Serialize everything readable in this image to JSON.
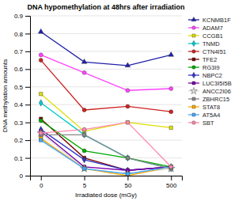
{
  "chart_data": {
    "type": "line",
    "title": "DNA hypomethylation at 48hrs after irradiation",
    "x_label": "Irradiated dose (mGy)",
    "y_label": "DNA methylation amounts",
    "categories": [
      "0",
      "5",
      "50",
      "500"
    ],
    "ylim": [
      0,
      0.9
    ],
    "yticks": [
      0,
      0.1,
      0.2,
      0.3,
      0.4,
      0.5,
      0.6,
      0.7,
      0.8,
      0.9
    ],
    "grid": true,
    "legend": "right",
    "series": [
      {
        "name": "KCNMB1F",
        "color": "#2020AA",
        "marker": "triangle",
        "values": [
          0.81,
          0.64,
          0.62,
          0.68
        ]
      },
      {
        "name": "ADAM7",
        "color": "#FF44FF",
        "marker": "circle",
        "values": [
          0.68,
          0.58,
          0.48,
          0.49
        ]
      },
      {
        "name": "CCGB1",
        "color": "#DDDD00",
        "marker": "square",
        "values": [
          0.46,
          0.25,
          0.3,
          0.27
        ]
      },
      {
        "name": "TNMD",
        "color": "#00CCCC",
        "marker": "diamond",
        "values": [
          0.41,
          0.23,
          0.1,
          0.04
        ]
      },
      {
        "name": "CTN4I51",
        "color": "#CC2222",
        "marker": "circle",
        "values": [
          0.65,
          0.37,
          0.39,
          0.36
        ]
      },
      {
        "name": "TFE2",
        "color": "#770000",
        "marker": "square",
        "values": [
          0.32,
          0.1,
          0.03,
          0.05
        ]
      },
      {
        "name": "RG3I9",
        "color": "#00AA00",
        "marker": "circle",
        "values": [
          0.31,
          0.14,
          0.1,
          0.05
        ]
      },
      {
        "name": "NBPC2",
        "color": "#3333CC",
        "marker": "diamond",
        "values": [
          0.26,
          0.09,
          0.03,
          0.05
        ]
      },
      {
        "name": "LUC3I5I5B",
        "color": "#7700AA",
        "marker": "square",
        "values": [
          0.25,
          0.05,
          0.03,
          0.05
        ]
      },
      {
        "name": "ANCC2I06",
        "color": "#DDDDDD",
        "marker": "star",
        "values": [
          0.24,
          0.04,
          0.01,
          0.04
        ]
      },
      {
        "name": "ZBHRC15",
        "color": "#888888",
        "marker": "square",
        "values": [
          0.23,
          0.23,
          0.1,
          0.04
        ]
      },
      {
        "name": "STAT8",
        "color": "#FFAA00",
        "marker": "square",
        "values": [
          0.21,
          0.04,
          0.0,
          0.05
        ]
      },
      {
        "name": "AT5A4",
        "color": "#44AAFF",
        "marker": "square",
        "values": [
          0.2,
          0.04,
          0.01,
          0.05
        ]
      },
      {
        "name": "SBT",
        "color": "#FF88AA",
        "marker": "circle",
        "values": [
          0.24,
          0.26,
          0.3,
          0.05
        ]
      }
    ]
  }
}
